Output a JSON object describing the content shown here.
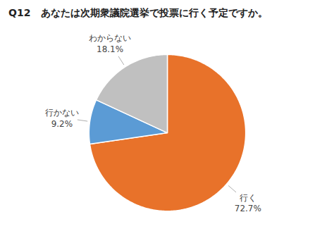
{
  "chart_data": {
    "type": "pie",
    "title": "Q12   あなたは次期衆議院選挙で投票に行く予定ですか。",
    "categories": [
      "行く",
      "行かない",
      "わからない"
    ],
    "values": [
      72.7,
      9.2,
      18.1
    ],
    "value_labels": [
      "72.7%",
      "9.2%",
      "18.1%"
    ],
    "colors": [
      "#E8722A",
      "#5B9BD5",
      "#C0C0C0"
    ],
    "data_labels": true
  }
}
